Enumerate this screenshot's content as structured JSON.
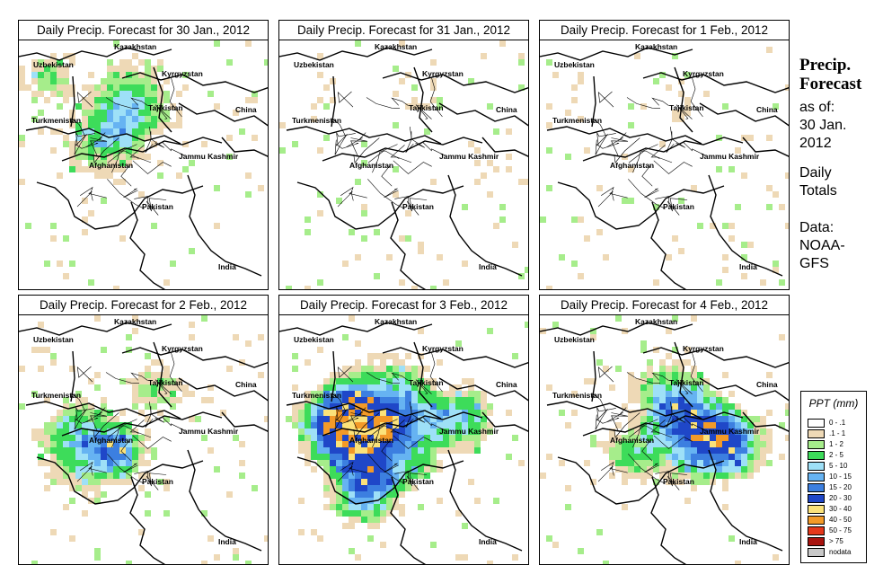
{
  "panels": [
    {
      "title": "Daily Precip. Forecast for  30 Jan., 2012",
      "level": 1.0,
      "pattern": "north"
    },
    {
      "title": "Daily Precip. Forecast for  31 Jan., 2012",
      "level": 0.25,
      "pattern": "dry"
    },
    {
      "title": "Daily Precip. Forecast for  1 Feb., 2012",
      "level": 0.35,
      "pattern": "dry"
    },
    {
      "title": "Daily Precip. Forecast for  2 Feb., 2012",
      "level": 1.1,
      "pattern": "west"
    },
    {
      "title": "Daily Precip. Forecast for  3 Feb., 2012",
      "level": 1.7,
      "pattern": "broad"
    },
    {
      "title": "Daily Precip. Forecast for  4 Feb., 2012",
      "level": 1.4,
      "pattern": "east"
    }
  ],
  "map_labels": {
    "kazakhstan": "Kazakhstan",
    "uzbekistan": "Uzbekistan",
    "kyrgyzstan": "Kyrgyzstan",
    "tajikistan": "Tajikistan",
    "turkmenistan": "Turkmenistan",
    "china": "China",
    "afghanistan": "Afghanistan",
    "jammu_kashmir": "Jammu Kashmir",
    "pakistan": "Pakistan",
    "india": "India"
  },
  "side": {
    "title_line1": "Precip.",
    "title_line2": "Forecast",
    "asof_line1": "as of:",
    "asof_line2": "30 Jan.",
    "asof_line3": "2012",
    "daily_line1": "Daily",
    "daily_line2": "Totals",
    "data_line1": "Data:",
    "data_line2": "NOAA-",
    "data_line3": "GFS"
  },
  "legend": {
    "title": "PPT (mm)",
    "items": [
      {
        "label": "0 - .1",
        "color": "#ffffff"
      },
      {
        "label": ".1 - 1",
        "color": "#eed9b6"
      },
      {
        "label": "1 - 2",
        "color": "#a6ed8b"
      },
      {
        "label": "2 - 5",
        "color": "#3ddc5a"
      },
      {
        "label": "5 - 10",
        "color": "#9ee0f7"
      },
      {
        "label": "10 - 15",
        "color": "#66b3f2"
      },
      {
        "label": "15 - 20",
        "color": "#3c7fe0"
      },
      {
        "label": "20 - 30",
        "color": "#1f47c8"
      },
      {
        "label": "30 - 40",
        "color": "#fbe27a"
      },
      {
        "label": "40 - 50",
        "color": "#f39a28"
      },
      {
        "label": "50 - 75",
        "color": "#e4381b"
      },
      {
        "label": "> 75",
        "color": "#a8130e"
      },
      {
        "label": "nodata",
        "color": "#c8c8c8"
      }
    ]
  }
}
